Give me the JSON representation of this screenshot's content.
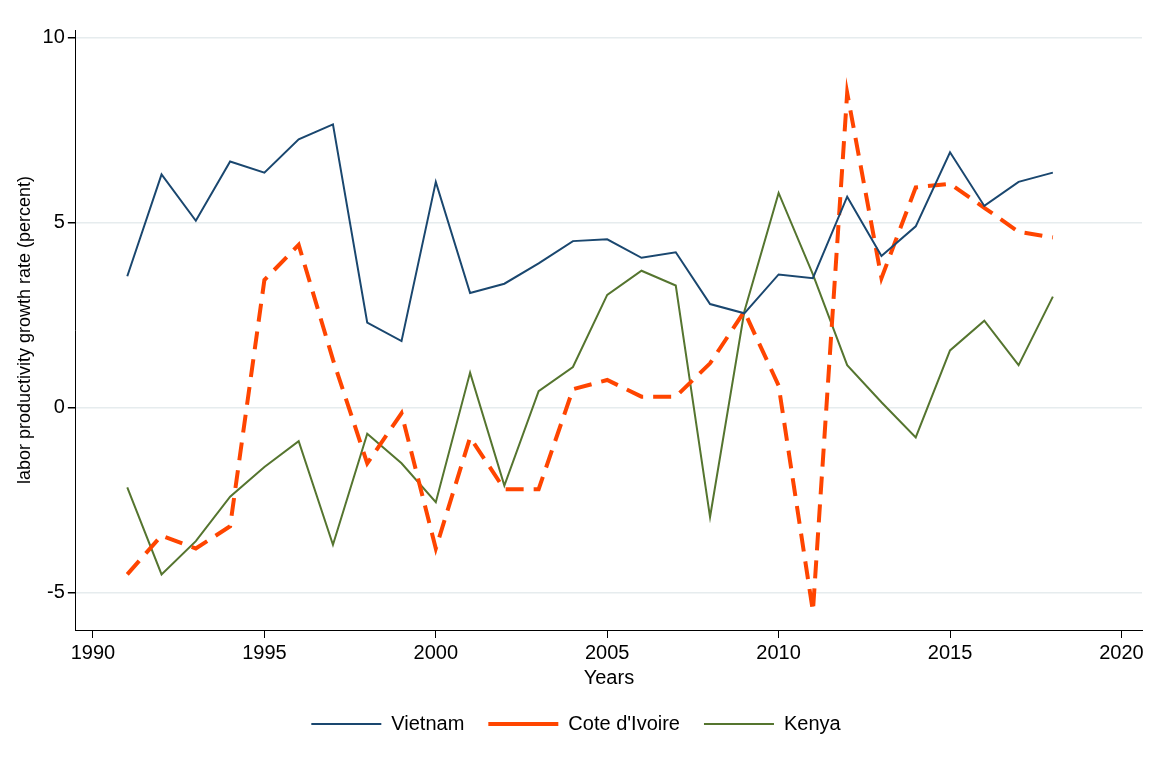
{
  "chart_data": {
    "type": "line",
    "x_label": "Years",
    "y_label": "labor productivity growth rate (percent)",
    "x": [
      1991,
      1992,
      1993,
      1994,
      1995,
      1996,
      1997,
      1998,
      1999,
      2000,
      2001,
      2002,
      2003,
      2004,
      2005,
      2006,
      2007,
      2008,
      2009,
      2010,
      2011,
      2012,
      2013,
      2014,
      2015,
      2016,
      2017,
      2018
    ],
    "series": [
      {
        "name": "Vietnam",
        "color": "#1a476f",
        "line_style": "solid",
        "values": [
          3.55,
          6.3,
          5.05,
          6.65,
          6.35,
          7.25,
          7.65,
          2.3,
          1.8,
          6.1,
          3.1,
          3.35,
          3.9,
          4.5,
          4.55,
          4.05,
          4.2,
          2.8,
          2.55,
          3.6,
          3.5,
          5.7,
          4.1,
          4.9,
          6.9,
          5.45,
          6.1,
          6.35
        ]
      },
      {
        "name": "Cote d'Ivoire",
        "color": "#ff4500",
        "line_style": "dashed",
        "values": [
          -4.5,
          -3.45,
          -3.8,
          -3.2,
          3.45,
          4.4,
          1.3,
          -1.5,
          -0.15,
          -3.8,
          -0.8,
          -2.2,
          -2.2,
          0.5,
          0.75,
          0.3,
          0.3,
          1.2,
          2.6,
          0.6,
          -5.5,
          8.5,
          3.5,
          5.95,
          6.05,
          5.4,
          4.75,
          4.6
        ]
      },
      {
        "name": "Kenya",
        "color": "#55752f",
        "line_style": "solid",
        "values": [
          -2.15,
          -4.5,
          -3.6,
          -2.4,
          -1.6,
          -0.9,
          -3.7,
          -0.7,
          -1.5,
          -2.55,
          0.95,
          -2.1,
          0.45,
          1.1,
          3.05,
          3.7,
          3.3,
          -2.95,
          2.6,
          5.8,
          3.6,
          1.15,
          0.15,
          -0.8,
          1.55,
          2.35,
          1.15,
          3.0
        ]
      }
    ],
    "xlim": [
      1989.5,
      2020.6
    ],
    "xticks": [
      1990,
      1995,
      2000,
      2005,
      2010,
      2015,
      2020
    ],
    "ylim": [
      -6,
      10.2
    ],
    "yticks": [
      -5,
      0,
      5,
      10
    ],
    "grid": true,
    "legend": "bottom"
  }
}
